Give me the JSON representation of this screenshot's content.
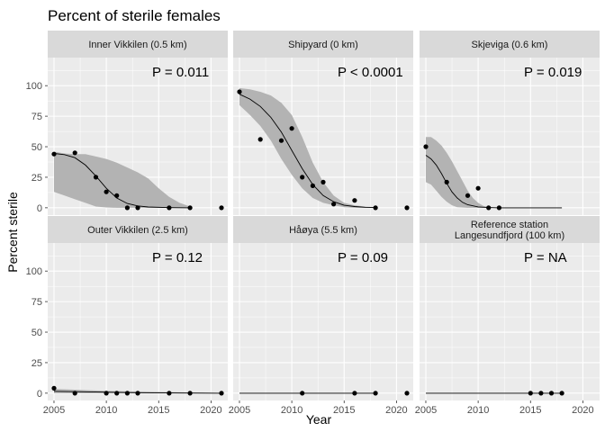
{
  "chart_data": {
    "type": "scatter",
    "title": "Percent of sterile females",
    "xlabel": "Year",
    "ylabel": "Percent sterile",
    "xlim": [
      2004.4,
      2021.6
    ],
    "ylim": [
      -6,
      123
    ],
    "x_ticks": [
      2005,
      2010,
      2015,
      2020
    ],
    "y_ticks": [
      0,
      25,
      50,
      75,
      100
    ],
    "grid": true,
    "layout": "facet grid, 2 rows x 3 columns",
    "panels": [
      {
        "strip": [
          "Inner Vikkilen (0.5 km)"
        ],
        "p_label": "P =  0.011",
        "points": [
          [
            2005,
            44
          ],
          [
            2007,
            45
          ],
          [
            2009,
            25
          ],
          [
            2010,
            13
          ],
          [
            2011,
            10
          ],
          [
            2012,
            0
          ],
          [
            2013,
            0
          ],
          [
            2016,
            0
          ],
          [
            2018,
            0
          ],
          [
            2021,
            0
          ]
        ],
        "fit": [
          [
            2005,
            44.5
          ],
          [
            2006,
            43.5
          ],
          [
            2007,
            41
          ],
          [
            2008,
            35
          ],
          [
            2009,
            26
          ],
          [
            2010,
            16
          ],
          [
            2011,
            8
          ],
          [
            2012,
            3.5
          ],
          [
            2013,
            1.5
          ],
          [
            2014,
            0.6
          ],
          [
            2016,
            0.1
          ],
          [
            2018,
            0
          ]
        ],
        "band_upper": [
          [
            2005,
            46
          ],
          [
            2006,
            44.5
          ],
          [
            2007,
            44
          ],
          [
            2008,
            44
          ],
          [
            2009,
            42
          ],
          [
            2010,
            40
          ],
          [
            2011,
            37
          ],
          [
            2012,
            33
          ],
          [
            2013,
            29
          ],
          [
            2014,
            24
          ],
          [
            2015,
            16
          ],
          [
            2016,
            9
          ],
          [
            2017,
            4
          ],
          [
            2018,
            1
          ]
        ],
        "band_lower": [
          [
            2005,
            13
          ],
          [
            2006,
            10
          ],
          [
            2007,
            7
          ],
          [
            2008,
            4
          ],
          [
            2009,
            1
          ],
          [
            2010,
            0.3
          ],
          [
            2011,
            0
          ],
          [
            2012,
            0
          ],
          [
            2013,
            0
          ],
          [
            2014,
            0
          ],
          [
            2015,
            0
          ],
          [
            2016,
            0
          ],
          [
            2017,
            0
          ],
          [
            2018,
            0
          ]
        ]
      },
      {
        "strip": [
          "Shipyard (0 km)"
        ],
        "p_label": "P < 0.0001",
        "points": [
          [
            2005,
            95
          ],
          [
            2007,
            56
          ],
          [
            2009,
            55
          ],
          [
            2010,
            65
          ],
          [
            2011,
            25
          ],
          [
            2012,
            18
          ],
          [
            2013,
            21
          ],
          [
            2014,
            3
          ],
          [
            2016,
            6
          ],
          [
            2018,
            0
          ],
          [
            2021,
            0
          ]
        ],
        "fit": [
          [
            2005,
            93
          ],
          [
            2006,
            89
          ],
          [
            2007,
            83
          ],
          [
            2008,
            74
          ],
          [
            2009,
            62
          ],
          [
            2010,
            47
          ],
          [
            2011,
            32
          ],
          [
            2012,
            19
          ],
          [
            2013,
            10
          ],
          [
            2014,
            5
          ],
          [
            2015,
            2
          ],
          [
            2016,
            1
          ],
          [
            2017,
            0.4
          ],
          [
            2018,
            0.2
          ]
        ],
        "band_upper": [
          [
            2005,
            98
          ],
          [
            2006,
            97
          ],
          [
            2007,
            95
          ],
          [
            2008,
            92
          ],
          [
            2009,
            86
          ],
          [
            2010,
            76
          ],
          [
            2011,
            58
          ],
          [
            2012,
            37
          ],
          [
            2013,
            21
          ],
          [
            2014,
            10
          ],
          [
            2015,
            4
          ],
          [
            2016,
            2
          ],
          [
            2017,
            1
          ],
          [
            2018,
            0.5
          ]
        ],
        "band_lower": [
          [
            2005,
            84
          ],
          [
            2006,
            76
          ],
          [
            2007,
            67
          ],
          [
            2008,
            55
          ],
          [
            2009,
            40
          ],
          [
            2010,
            27
          ],
          [
            2011,
            16
          ],
          [
            2012,
            8
          ],
          [
            2013,
            4
          ],
          [
            2014,
            2
          ],
          [
            2015,
            0.5
          ],
          [
            2016,
            0
          ],
          [
            2017,
            0
          ],
          [
            2018,
            0
          ]
        ]
      },
      {
        "strip": [
          "Skjeviga (0.6 km)"
        ],
        "p_label": "P =  0.019",
        "points": [
          [
            2005,
            50
          ],
          [
            2007,
            21
          ],
          [
            2009,
            10
          ],
          [
            2010,
            16
          ],
          [
            2011,
            0
          ],
          [
            2012,
            0
          ]
        ],
        "fit": [
          [
            2005,
            43
          ],
          [
            2005.5,
            40
          ],
          [
            2006,
            35
          ],
          [
            2006.5,
            28
          ],
          [
            2007,
            20
          ],
          [
            2007.5,
            13
          ],
          [
            2008,
            8
          ],
          [
            2008.5,
            4.5
          ],
          [
            2009,
            2.5
          ],
          [
            2010,
            0.7
          ],
          [
            2011,
            0.2
          ],
          [
            2012,
            0
          ],
          [
            2015,
            0
          ],
          [
            2018,
            0
          ]
        ],
        "band_upper": [
          [
            2005,
            58
          ],
          [
            2005.5,
            58
          ],
          [
            2006,
            55
          ],
          [
            2006.5,
            51
          ],
          [
            2007,
            45
          ],
          [
            2007.5,
            38
          ],
          [
            2008,
            30
          ],
          [
            2008.5,
            22
          ],
          [
            2009,
            14
          ],
          [
            2009.5,
            8
          ],
          [
            2010,
            4
          ],
          [
            2010.5,
            1.5
          ],
          [
            2011,
            0.5
          ],
          [
            2012,
            0
          ]
        ],
        "band_lower": [
          [
            2005,
            21
          ],
          [
            2005.5,
            19
          ],
          [
            2006,
            14
          ],
          [
            2006.5,
            9
          ],
          [
            2007,
            5
          ],
          [
            2007.5,
            2
          ],
          [
            2008,
            0.5
          ],
          [
            2009,
            0
          ],
          [
            2010,
            0
          ],
          [
            2011,
            0
          ],
          [
            2012,
            0
          ]
        ]
      },
      {
        "strip": [
          "Outer Vikkilen (2.5 km)"
        ],
        "p_label": "P =  0.12",
        "points": [
          [
            2005,
            4
          ],
          [
            2007,
            0
          ],
          [
            2010,
            0
          ],
          [
            2011,
            0
          ],
          [
            2012,
            0
          ],
          [
            2013,
            0
          ],
          [
            2016,
            0
          ],
          [
            2018,
            0
          ],
          [
            2021,
            0
          ]
        ],
        "fit": [
          [
            2005,
            1.5
          ],
          [
            2009,
            0.9
          ],
          [
            2013,
            0.4
          ],
          [
            2017,
            0.1
          ],
          [
            2021,
            0
          ]
        ],
        "band_upper": [
          [
            2005,
            3.5
          ],
          [
            2009,
            2.2
          ],
          [
            2013,
            1.3
          ],
          [
            2017,
            0.7
          ],
          [
            2021,
            0.3
          ]
        ],
        "band_lower": [
          [
            2005,
            0
          ],
          [
            2021,
            0
          ]
        ]
      },
      {
        "strip": [
          "Håøya (5.5 km)"
        ],
        "p_label": "P =  0.09",
        "points": [
          [
            2011,
            0
          ],
          [
            2016,
            0
          ],
          [
            2018,
            0
          ],
          [
            2021,
            0
          ]
        ],
        "fit": [
          [
            2005,
            0
          ],
          [
            2018,
            0
          ]
        ]
      },
      {
        "strip": [
          "Reference station",
          "Langesundfjord (100 km)"
        ],
        "p_label": "P =  NA",
        "points": [
          [
            2015,
            0
          ],
          [
            2016,
            0
          ],
          [
            2017,
            0
          ],
          [
            2018,
            0
          ]
        ],
        "fit": [
          [
            2005,
            0
          ],
          [
            2018,
            0
          ]
        ]
      }
    ]
  }
}
